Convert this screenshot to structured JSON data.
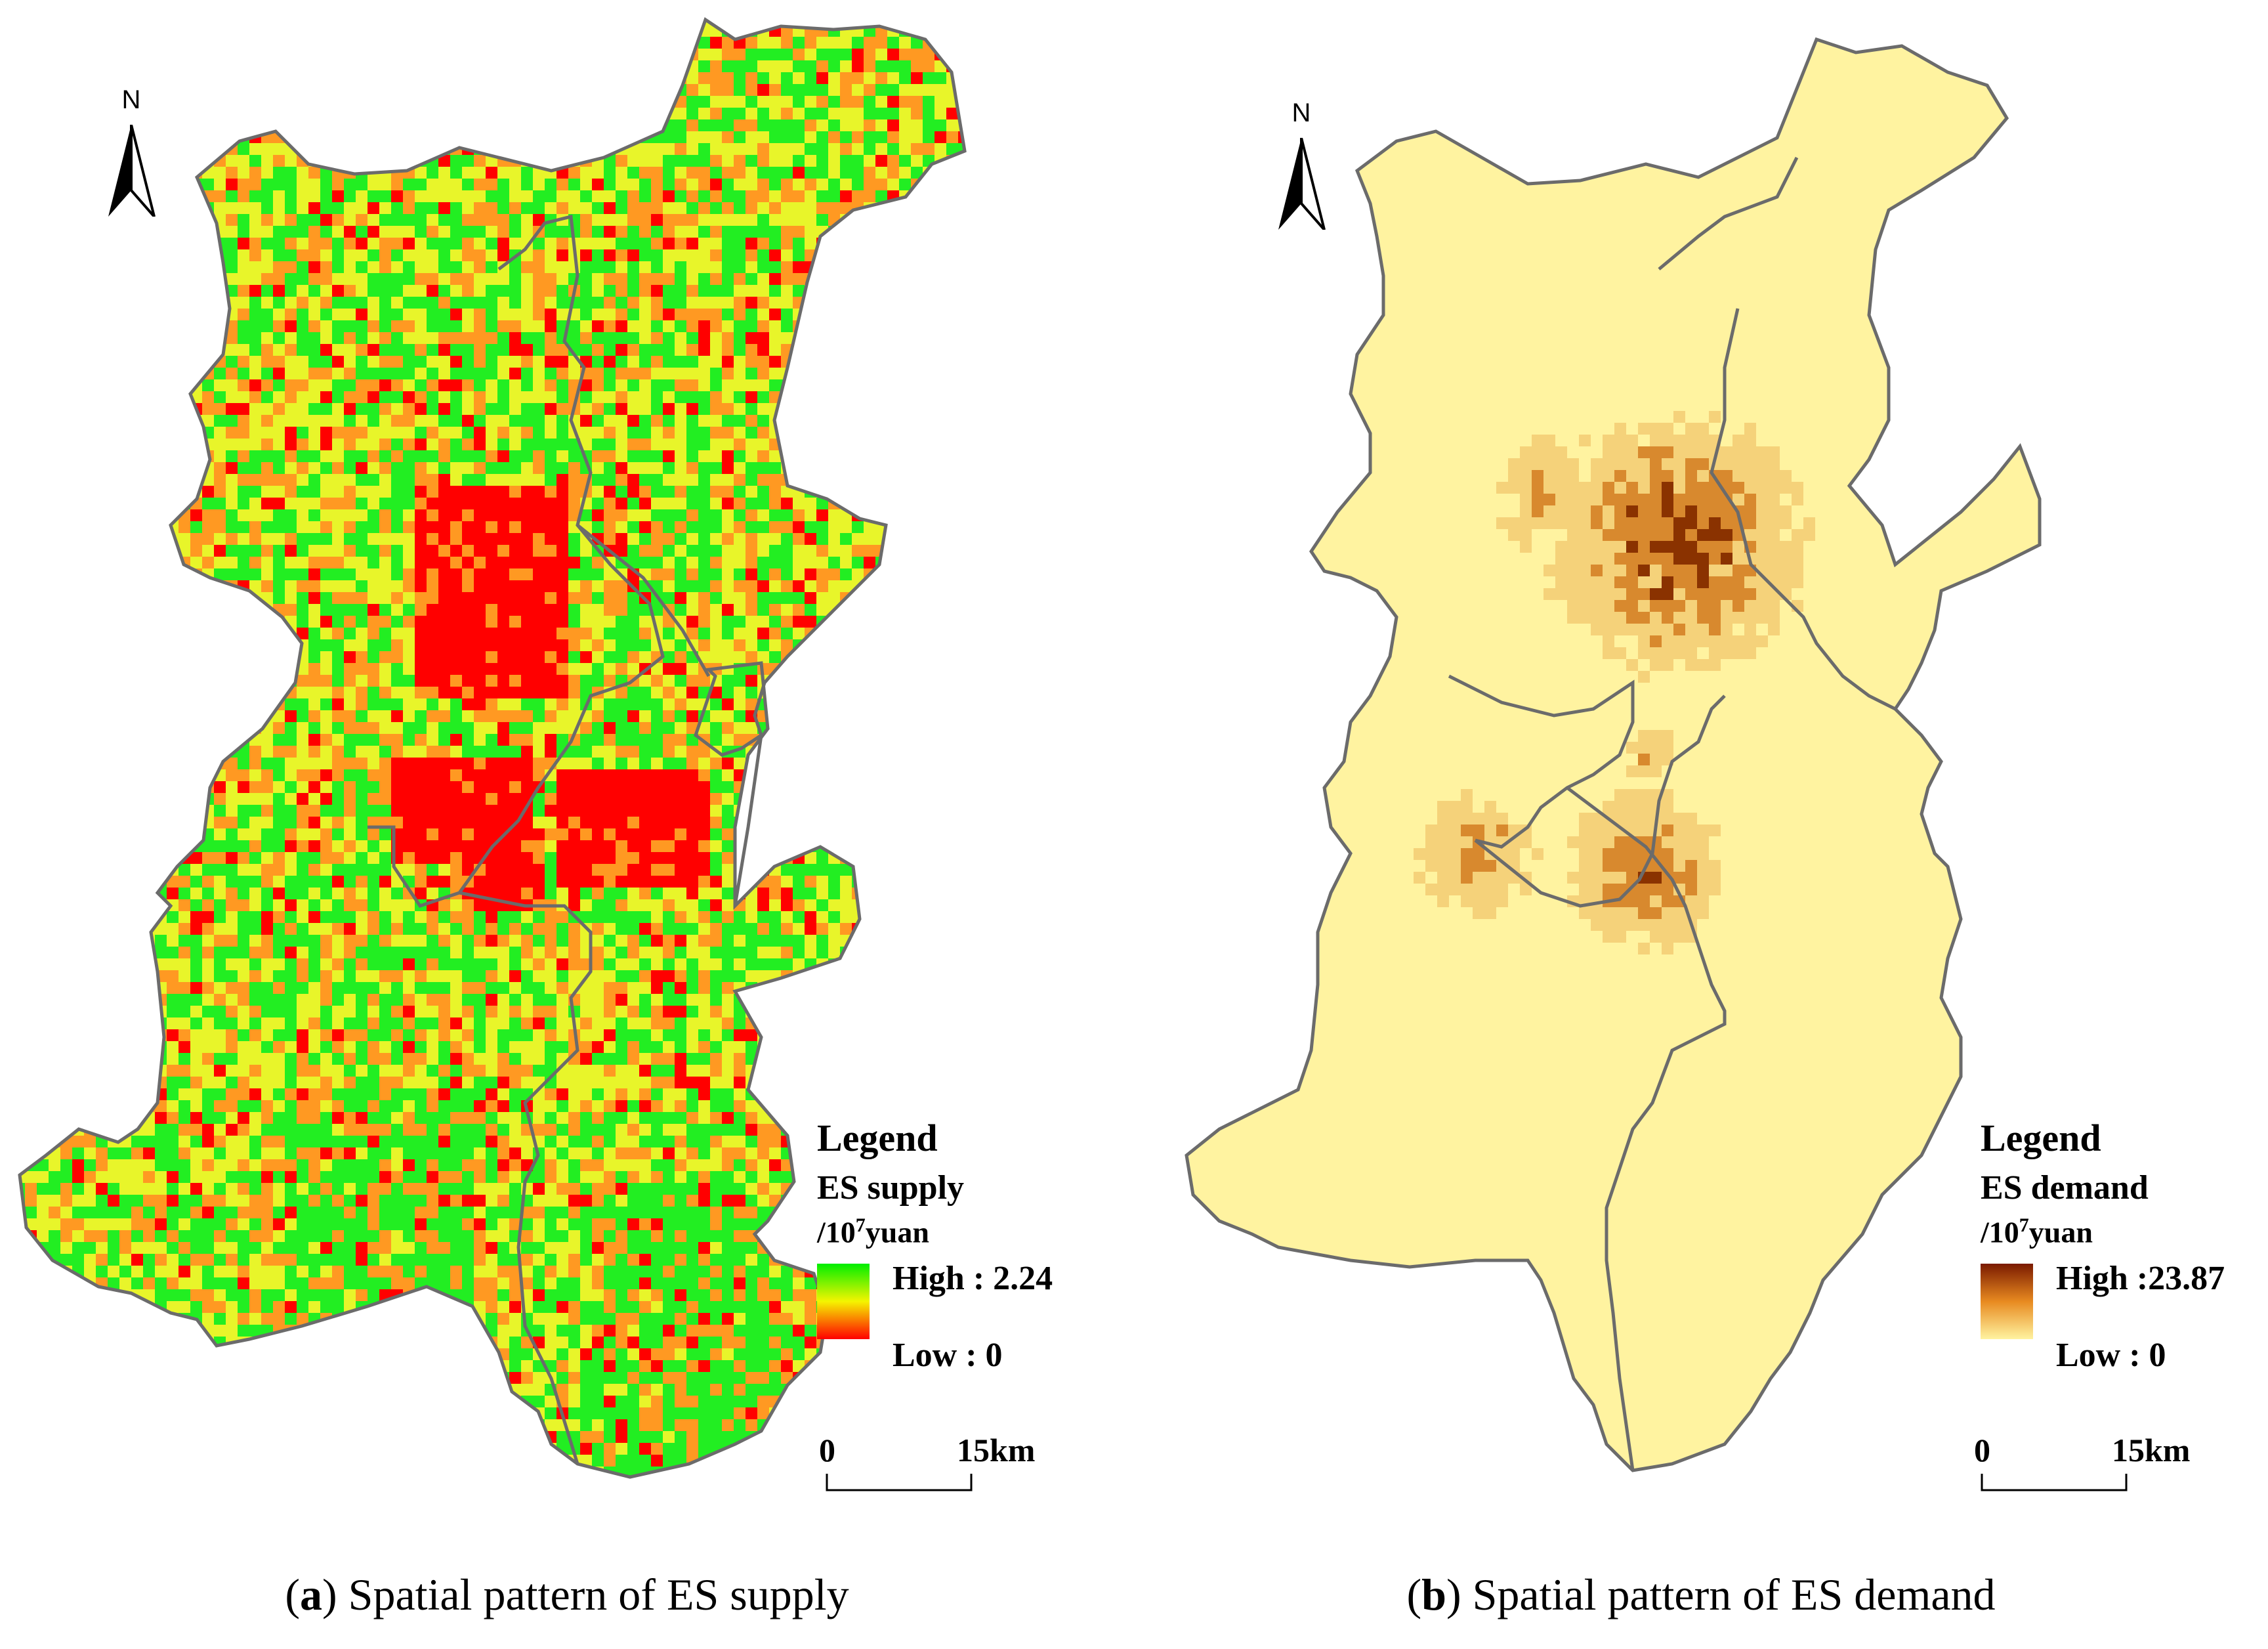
{
  "panels": [
    {
      "id": "a",
      "north_label": "N",
      "legend": {
        "title": "Legend",
        "variable": "ES supply",
        "unit_prefix": "/10",
        "unit_exp": "7",
        "unit_suffix": "yuan",
        "high_label": "High : 2.24",
        "low_label": "Low : 0",
        "ramp_colors": [
          "#00ee00",
          "#f5f500",
          "#ff0000"
        ]
      },
      "scale": {
        "start": "0",
        "end": "15km"
      },
      "caption": {
        "letter": "a",
        "text": "Spatial pattern of ES supply"
      },
      "palette": {
        "high": "#22ee22",
        "mid": "#e8f52a",
        "midlow": "#ff9922",
        "low": "#ff0000"
      }
    },
    {
      "id": "b",
      "north_label": "N",
      "legend": {
        "title": "Legend",
        "variable": "ES demand",
        "unit_prefix": "/10",
        "unit_exp": "7",
        "unit_suffix": "yuan",
        "high_label": "High :23.87",
        "low_label": "Low : 0",
        "ramp_colors": [
          "#7a1a00",
          "#e88a20",
          "#fff3a0"
        ]
      },
      "scale": {
        "start": "0",
        "end": "15km"
      },
      "caption": {
        "letter": "b",
        "text": "Spatial pattern of ES demand"
      },
      "palette": {
        "base": "#fff3a0",
        "light": "#f5d27a",
        "mid": "#d8892e",
        "dark": "#8a3200"
      }
    }
  ],
  "boundary_color": "#6b6b6b"
}
